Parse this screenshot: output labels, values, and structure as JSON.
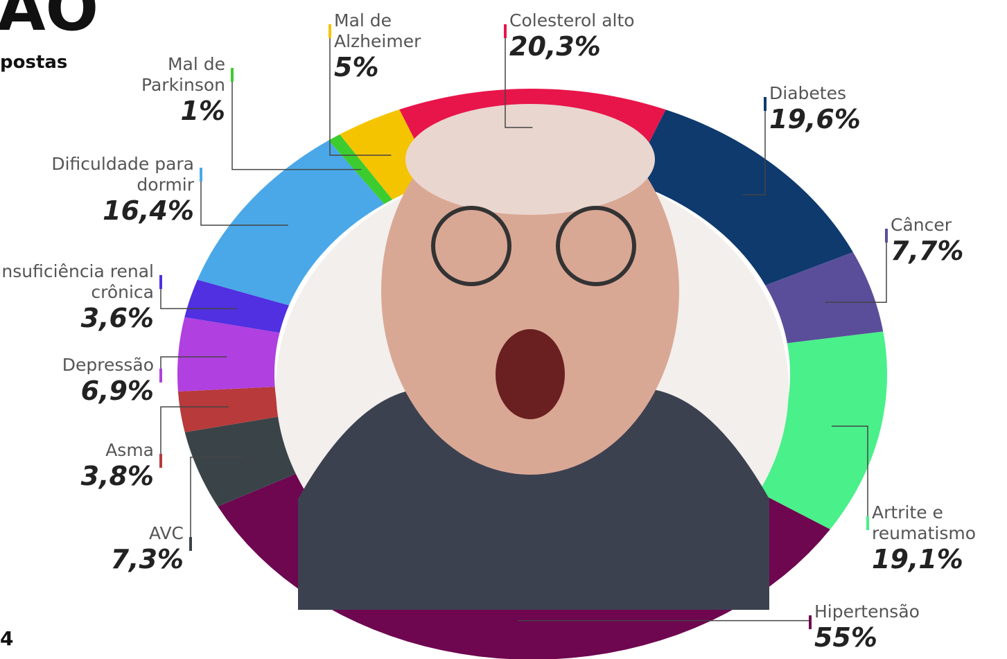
{
  "chart_data": {
    "type": "donut",
    "title": "AO",
    "subtitle": "postas",
    "footnote": "4",
    "categories": [
      "Colesterol alto",
      "Diabetes",
      "Câncer",
      "Artrite e reumatismo",
      "Hipertensão",
      "AVC",
      "Asma",
      "Depressão",
      "Insuficiência renal crônica",
      "Dificuldade para dormir",
      "Mal de Parkinson",
      "Mal de Alzheimer"
    ],
    "values": [
      20.3,
      19.6,
      7.7,
      19.1,
      55,
      7.3,
      3.8,
      6.9,
      3.6,
      16.4,
      1,
      5
    ],
    "value_labels": [
      "20,3%",
      "19,6%",
      "7,7%",
      "19,1%",
      "55%",
      "7,3%",
      "3,8%",
      "6,9%",
      "3,6%",
      "16,4%",
      "1%",
      "5%"
    ],
    "colors": [
      "#e8154a",
      "#0e3a6e",
      "#5a4e9a",
      "#4af08a",
      "#6e0650",
      "#3a4448",
      "#b83a3a",
      "#b040e0",
      "#5030e0",
      "#4aa8e8",
      "#3ccc30",
      "#f5c400"
    ]
  }
}
